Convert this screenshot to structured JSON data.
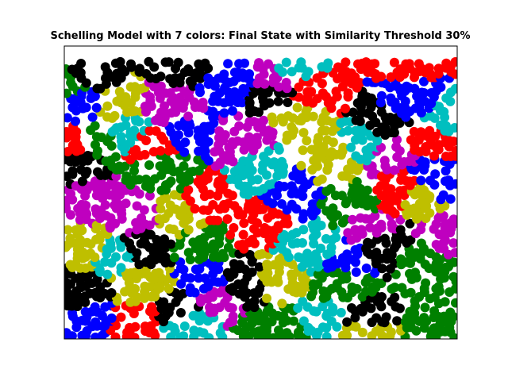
{
  "chart_data": {
    "type": "scatter",
    "title": "Schelling Model with 7 colors: Final State with Similarity Threshold 30%",
    "xlabel": "",
    "ylabel": "",
    "xlim": [
      0,
      100
    ],
    "ylim": [
      0,
      75
    ],
    "grid": false,
    "legend": "none",
    "axis_ticks": "hidden",
    "colors": {
      "b": "#0000ff",
      "r": "#ff0000",
      "g": "#008000",
      "c": "#00bfbf",
      "m": "#bf00bf",
      "y": "#bfbf00",
      "k": "#000000"
    },
    "cluster_seeds": [
      {
        "color": "b",
        "x": 5,
        "y": 61
      },
      {
        "color": "b",
        "x": 32,
        "y": 53
      },
      {
        "color": "b",
        "x": 42,
        "y": 65
      },
      {
        "color": "b",
        "x": 58,
        "y": 38
      },
      {
        "color": "b",
        "x": 72,
        "y": 20
      },
      {
        "color": "b",
        "x": 88,
        "y": 60
      },
      {
        "color": "b",
        "x": 6,
        "y": 5
      },
      {
        "color": "b",
        "x": 36,
        "y": 15
      },
      {
        "color": "b",
        "x": 94,
        "y": 40
      },
      {
        "color": "r",
        "x": 22,
        "y": 50
      },
      {
        "color": "r",
        "x": 48,
        "y": 30
      },
      {
        "color": "r",
        "x": 37,
        "y": 35
      },
      {
        "color": "r",
        "x": 93,
        "y": 52
      },
      {
        "color": "r",
        "x": 18,
        "y": 4
      },
      {
        "color": "r",
        "x": 87,
        "y": 73
      },
      {
        "color": "r",
        "x": 63,
        "y": 63
      },
      {
        "color": "r",
        "x": 86,
        "y": 38
      },
      {
        "color": "r",
        "x": 4,
        "y": 48
      },
      {
        "color": "g",
        "x": 4,
        "y": 65
      },
      {
        "color": "g",
        "x": 25,
        "y": 44
      },
      {
        "color": "g",
        "x": 73,
        "y": 35
      },
      {
        "color": "g",
        "x": 53,
        "y": 2
      },
      {
        "color": "g",
        "x": 92,
        "y": 20
      },
      {
        "color": "g",
        "x": 9,
        "y": 50
      },
      {
        "color": "g",
        "x": 35,
        "y": 25
      },
      {
        "color": "g",
        "x": 70,
        "y": 14
      },
      {
        "color": "g",
        "x": 97,
        "y": 5
      },
      {
        "color": "c",
        "x": 16,
        "y": 53
      },
      {
        "color": "c",
        "x": 50,
        "y": 43
      },
      {
        "color": "c",
        "x": 58,
        "y": 69
      },
      {
        "color": "c",
        "x": 63,
        "y": 23
      },
      {
        "color": "c",
        "x": 32,
        "y": 5
      },
      {
        "color": "c",
        "x": 96,
        "y": 56
      },
      {
        "color": "c",
        "x": 78,
        "y": 50
      },
      {
        "color": "c",
        "x": 13,
        "y": 22
      },
      {
        "color": "c",
        "x": 68,
        "y": 6
      },
      {
        "color": "m",
        "x": 27,
        "y": 59
      },
      {
        "color": "m",
        "x": 54,
        "y": 66
      },
      {
        "color": "m",
        "x": 82,
        "y": 48
      },
      {
        "color": "m",
        "x": 18,
        "y": 31
      },
      {
        "color": "m",
        "x": 38,
        "y": 10
      },
      {
        "color": "m",
        "x": 78,
        "y": 28
      },
      {
        "color": "m",
        "x": 98,
        "y": 26
      },
      {
        "color": "m",
        "x": 8,
        "y": 35
      },
      {
        "color": "m",
        "x": 45,
        "y": 51
      },
      {
        "color": "y",
        "x": 13,
        "y": 60
      },
      {
        "color": "y",
        "x": 30,
        "y": 31
      },
      {
        "color": "y",
        "x": 60,
        "y": 57
      },
      {
        "color": "y",
        "x": 55,
        "y": 15
      },
      {
        "color": "y",
        "x": 20,
        "y": 14
      },
      {
        "color": "y",
        "x": 90,
        "y": 37
      },
      {
        "color": "y",
        "x": 75,
        "y": 3
      },
      {
        "color": "y",
        "x": 69,
        "y": 44
      },
      {
        "color": "y",
        "x": 6,
        "y": 24
      },
      {
        "color": "k",
        "x": 6,
        "y": 66
      },
      {
        "color": "k",
        "x": 31,
        "y": 71
      },
      {
        "color": "k",
        "x": 53,
        "y": 63
      },
      {
        "color": "k",
        "x": 82,
        "y": 55
      },
      {
        "color": "k",
        "x": 20,
        "y": 24
      },
      {
        "color": "k",
        "x": 46,
        "y": 14
      },
      {
        "color": "k",
        "x": 81,
        "y": 24
      },
      {
        "color": "k",
        "x": 4,
        "y": 12
      },
      {
        "color": "k",
        "x": 30,
        "y": 7
      },
      {
        "color": "k",
        "x": 75,
        "y": 5
      },
      {
        "color": "k",
        "x": 4,
        "y": 46
      }
    ],
    "n_agents": 2000
  }
}
